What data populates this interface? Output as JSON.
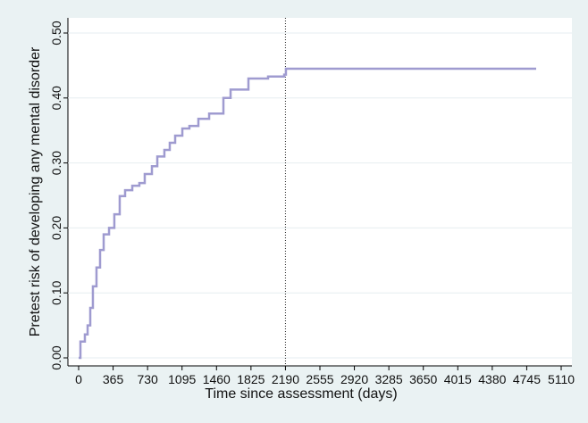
{
  "chart_data": {
    "type": "line",
    "step": "post",
    "x_label": "Time since assessment (days)",
    "y_label": "Pretest risk of developing any mental disorder",
    "x": [
      0,
      19,
      66,
      95,
      123,
      151,
      189,
      227,
      265,
      322,
      378,
      435,
      492,
      568,
      643,
      700,
      776,
      833,
      908,
      965,
      1022,
      1098,
      1173,
      1268,
      1382,
      1476,
      1533,
      1609,
      1760,
      1798,
      2006,
      2177,
      2195,
      4845
    ],
    "series": [
      {
        "color": "#9f9bd0",
        "values": [
          0,
          0.025,
          0.036,
          0.05,
          0.077,
          0.11,
          0.139,
          0.166,
          0.19,
          0.2,
          0.221,
          0.249,
          0.258,
          0.265,
          0.269,
          0.283,
          0.295,
          0.31,
          0.32,
          0.331,
          0.342,
          0.353,
          0.357,
          0.368,
          0.376,
          0.376,
          0.4,
          0.413,
          0.413,
          0.43,
          0.433,
          0.436,
          0.445,
          0.445
        ]
      }
    ],
    "xlim": [
      0,
      5110
    ],
    "xticks": [
      0,
      365,
      730,
      1095,
      1460,
      1825,
      2190,
      2555,
      2920,
      3285,
      3650,
      4015,
      4380,
      4745,
      5110
    ],
    "ylim": [
      0,
      0.5
    ],
    "yticks": [
      {
        "value": 0,
        "label": "0.00"
      },
      {
        "value": 0.1,
        "label": "0.10"
      },
      {
        "value": 0.2,
        "label": "0.20"
      },
      {
        "value": 0.3,
        "label": "0.30"
      },
      {
        "value": 0.4,
        "label": "0.40"
      },
      {
        "value": 0.5,
        "label": "0.50"
      }
    ],
    "grid": true,
    "reference_line_x": 2190
  }
}
